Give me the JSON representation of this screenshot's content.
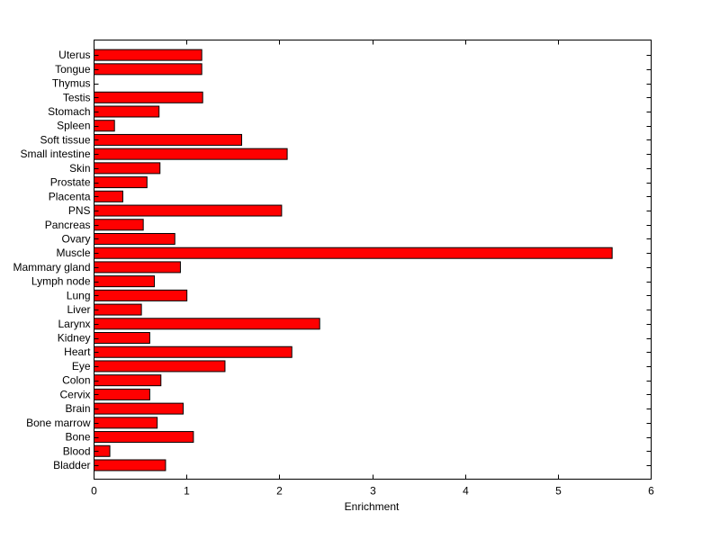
{
  "chart_data": {
    "type": "bar",
    "orientation": "horizontal",
    "title": "",
    "xlabel": "Enrichment",
    "ylabel": "",
    "xlim": [
      0,
      6
    ],
    "xticks": [
      "0",
      "1",
      "2",
      "3",
      "4",
      "5",
      "6"
    ],
    "grid": false,
    "legend": "none",
    "bar_color": "#ff0000",
    "bar_edge_color": "#000000",
    "categories": [
      "Bladder",
      "Blood",
      "Bone",
      "Bone marrow",
      "Brain",
      "Cervix",
      "Colon",
      "Eye",
      "Heart",
      "Kidney",
      "Larynx",
      "Liver",
      "Lung",
      "Lymph node",
      "Mammary gland",
      "Muscle",
      "Ovary",
      "Pancreas",
      "PNS",
      "Placenta",
      "Prostate",
      "Skin",
      "Small intestine",
      "Soft tissue",
      "Spleen",
      "Stomach",
      "Testis",
      "Thymus",
      "Tongue",
      "Uterus"
    ],
    "values": [
      0.77,
      0.17,
      1.07,
      0.68,
      0.96,
      0.6,
      0.72,
      1.41,
      2.13,
      0.6,
      2.43,
      0.51,
      1.0,
      0.65,
      0.93,
      5.58,
      0.87,
      0.53,
      2.02,
      0.31,
      0.57,
      0.71,
      2.08,
      1.59,
      0.22,
      0.7,
      1.17,
      0.0,
      1.16,
      1.16
    ]
  }
}
